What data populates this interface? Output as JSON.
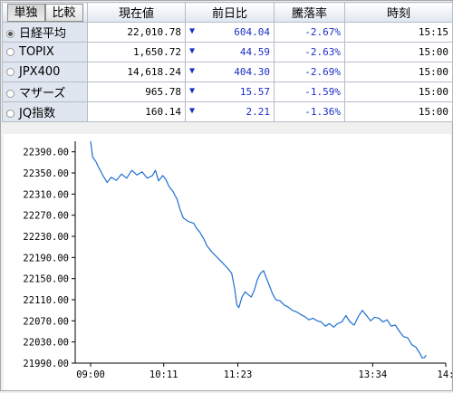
{
  "tabs": [
    {
      "label": "単独",
      "active": true
    },
    {
      "label": "比較",
      "active": false
    }
  ],
  "columns": {
    "price": "現在値",
    "change": "前日比",
    "pct": "騰落率",
    "time": "時刻"
  },
  "rows": [
    {
      "name": "日経平均",
      "price": "22,010.78",
      "change": "604.04",
      "pct": "-2.67%",
      "time": "15:15",
      "selected": true
    },
    {
      "name": "TOPIX",
      "price": "1,650.72",
      "change": "44.59",
      "pct": "-2.63%",
      "time": "15:00",
      "selected": false
    },
    {
      "name": "JPX400",
      "price": "14,618.24",
      "change": "404.30",
      "pct": "-2.69%",
      "time": "15:00",
      "selected": false
    },
    {
      "name": "マザーズ",
      "price": "965.78",
      "change": "15.57",
      "pct": "-1.59%",
      "time": "15:00",
      "selected": false
    },
    {
      "name": "JQ指数",
      "price": "160.14",
      "change": "2.21",
      "pct": "-1.36%",
      "time": "15:00",
      "selected": false
    }
  ],
  "down_arrow": "▼",
  "colors": {
    "line": "#1f6fd1",
    "change": "#1c2ec8",
    "header_bg": "#dfe6f0"
  },
  "chart_data": {
    "type": "line",
    "y_ticks": [
      "22390.00",
      "22350.00",
      "22310.00",
      "22270.00",
      "22230.00",
      "22190.00",
      "22150.00",
      "22110.00",
      "22070.00",
      "22030.00",
      "21990.00"
    ],
    "ylim": [
      21990,
      22410
    ],
    "x_ticks": [
      "09:00",
      "10:11",
      "11:23",
      "13:34",
      "14:"
    ],
    "x_tick_minutes": [
      0,
      71,
      143,
      274,
      345
    ],
    "xlim": [
      -15,
      345
    ],
    "series": [
      {
        "points": [
          [
            0,
            22410
          ],
          [
            2,
            22380
          ],
          [
            5,
            22372
          ],
          [
            8,
            22360
          ],
          [
            12,
            22345
          ],
          [
            16,
            22332
          ],
          [
            20,
            22342
          ],
          [
            25,
            22336
          ],
          [
            30,
            22348
          ],
          [
            35,
            22340
          ],
          [
            40,
            22355
          ],
          [
            45,
            22346
          ],
          [
            50,
            22352
          ],
          [
            55,
            22340
          ],
          [
            60,
            22345
          ],
          [
            63,
            22355
          ],
          [
            66,
            22335
          ],
          [
            70,
            22345
          ],
          [
            73,
            22338
          ],
          [
            76,
            22325
          ],
          [
            80,
            22315
          ],
          [
            84,
            22300
          ],
          [
            87,
            22280
          ],
          [
            90,
            22265
          ],
          [
            95,
            22258
          ],
          [
            100,
            22255
          ],
          [
            103,
            22245
          ],
          [
            106,
            22238
          ],
          [
            110,
            22225
          ],
          [
            113,
            22212
          ],
          [
            118,
            22200
          ],
          [
            123,
            22190
          ],
          [
            128,
            22180
          ],
          [
            133,
            22170
          ],
          [
            137,
            22160
          ],
          [
            140,
            22130
          ],
          [
            142,
            22100
          ],
          [
            144,
            22095
          ],
          [
            147,
            22115
          ],
          [
            150,
            22125
          ],
          [
            153,
            22120
          ],
          [
            156,
            22115
          ],
          [
            159,
            22128
          ],
          [
            162,
            22148
          ],
          [
            165,
            22160
          ],
          [
            168,
            22165
          ],
          [
            171,
            22150
          ],
          [
            174,
            22135
          ],
          [
            177,
            22120
          ],
          [
            180,
            22110
          ],
          [
            184,
            22108
          ],
          [
            188,
            22100
          ],
          [
            192,
            22096
          ],
          [
            196,
            22090
          ],
          [
            200,
            22087
          ],
          [
            204,
            22082
          ],
          [
            208,
            22078
          ],
          [
            212,
            22072
          ],
          [
            216,
            22075
          ],
          [
            220,
            22070
          ],
          [
            224,
            22068
          ],
          [
            228,
            22060
          ],
          [
            232,
            22065
          ],
          [
            236,
            22058
          ],
          [
            240,
            22065
          ],
          [
            244,
            22068
          ],
          [
            248,
            22080
          ],
          [
            252,
            22068
          ],
          [
            256,
            22062
          ],
          [
            260,
            22078
          ],
          [
            264,
            22090
          ],
          [
            268,
            22080
          ],
          [
            272,
            22070
          ],
          [
            276,
            22077
          ],
          [
            280,
            22075
          ],
          [
            284,
            22068
          ],
          [
            288,
            22072
          ],
          [
            292,
            22060
          ],
          [
            296,
            22062
          ],
          [
            300,
            22050
          ],
          [
            304,
            22040
          ],
          [
            308,
            22038
          ],
          [
            312,
            22025
          ],
          [
            316,
            22020
          ],
          [
            320,
            22008
          ],
          [
            322,
            22000
          ],
          [
            324,
            22000
          ],
          [
            326,
            22005
          ]
        ]
      }
    ]
  }
}
